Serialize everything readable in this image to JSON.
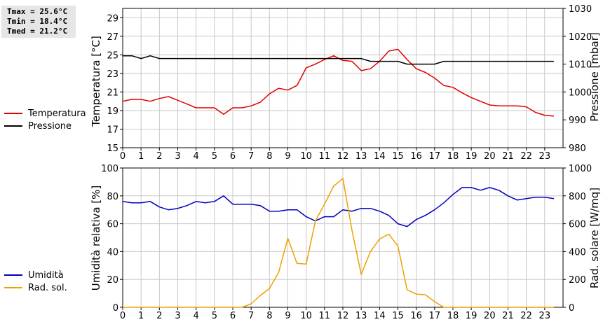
{
  "stats": {
    "tmax": "Tmax = 25.6°C",
    "tmin": "Tmin = 18.4°C",
    "tmed": "Tmed = 21.2°C"
  },
  "colors": {
    "temperature": "#e00000",
    "pressure": "#000000",
    "humidity": "#0000c0",
    "radiation": "#f0a000",
    "grid": "#c8c8c8"
  },
  "chart_data": [
    {
      "type": "line",
      "ylabel": "Temperatura [°C]",
      "y2label": "Pressione [mbar]",
      "xlim": [
        0,
        24
      ],
      "xticks": [
        0,
        1,
        2,
        3,
        4,
        5,
        6,
        7,
        8,
        9,
        10,
        11,
        12,
        13,
        14,
        15,
        16,
        17,
        18,
        19,
        20,
        21,
        22,
        23
      ],
      "ylim": [
        15,
        30
      ],
      "yticks": [
        15,
        17,
        19,
        21,
        23,
        25,
        27,
        29
      ],
      "y2lim": [
        980,
        1030
      ],
      "y2ticks": [
        980,
        990,
        1000,
        1010,
        1020,
        1030
      ],
      "grid": true,
      "legend_position": "left",
      "series": [
        {
          "name": "Temperatura",
          "axis": "left",
          "x": [
            0,
            0.5,
            1,
            1.5,
            2,
            2.5,
            3,
            3.5,
            4,
            4.5,
            5,
            5.5,
            6,
            6.5,
            7,
            7.5,
            8,
            8.5,
            9,
            9.5,
            10,
            10.5,
            11,
            11.5,
            12,
            12.5,
            13,
            13.5,
            14,
            14.5,
            15,
            15.5,
            16,
            16.5,
            17,
            17.5,
            18,
            18.5,
            19,
            19.5,
            20,
            20.5,
            21,
            21.5,
            22,
            22.5,
            23,
            23.5
          ],
          "values": [
            20.0,
            20.2,
            20.2,
            20.0,
            20.3,
            20.5,
            20.1,
            19.7,
            19.3,
            19.3,
            19.3,
            18.6,
            19.3,
            19.3,
            19.5,
            19.9,
            20.8,
            21.4,
            21.2,
            21.7,
            23.6,
            24.0,
            24.5,
            24.9,
            24.4,
            24.3,
            23.3,
            23.5,
            24.3,
            25.4,
            25.6,
            24.5,
            23.5,
            23.1,
            22.5,
            21.7,
            21.5,
            20.9,
            20.4,
            20.0,
            19.6,
            19.5,
            19.5,
            19.5,
            19.4,
            18.8,
            18.5,
            18.4
          ]
        },
        {
          "name": "Pressione",
          "axis": "right",
          "x": [
            0,
            0.5,
            1,
            1.5,
            2,
            2.5,
            3,
            3.5,
            4,
            4.5,
            5,
            5.5,
            6,
            6.5,
            7,
            7.5,
            8,
            8.5,
            9,
            9.5,
            10,
            10.5,
            11,
            11.5,
            12,
            12.5,
            13,
            13.5,
            14,
            14.5,
            15,
            15.5,
            16,
            16.5,
            17,
            17.5,
            18,
            18.5,
            19,
            19.5,
            20,
            20.5,
            21,
            21.5,
            22,
            22.5,
            23,
            23.5
          ],
          "values": [
            1013,
            1013,
            1012,
            1013,
            1012,
            1012,
            1012,
            1012,
            1012,
            1012,
            1012,
            1012,
            1012,
            1012,
            1012,
            1012,
            1012,
            1012,
            1012,
            1012,
            1012,
            1012,
            1012,
            1012,
            1012,
            1012,
            1012,
            1011,
            1011,
            1011,
            1011,
            1010,
            1010,
            1010,
            1010,
            1011,
            1011,
            1011,
            1011,
            1011,
            1011,
            1011,
            1011,
            1011,
            1011,
            1011,
            1011,
            1011
          ]
        }
      ]
    },
    {
      "type": "line",
      "ylabel": "Umidità relativa [%]",
      "y2label": "Rad. solare [W/mq]",
      "xlim": [
        0,
        24
      ],
      "xticks": [
        0,
        1,
        2,
        3,
        4,
        5,
        6,
        7,
        8,
        9,
        10,
        11,
        12,
        13,
        14,
        15,
        16,
        17,
        18,
        19,
        20,
        21,
        22,
        23
      ],
      "ylim": [
        0,
        100
      ],
      "yticks": [
        0,
        20,
        40,
        60,
        80,
        100
      ],
      "y2lim": [
        0,
        1000
      ],
      "y2ticks": [
        0,
        200,
        400,
        600,
        800,
        1000
      ],
      "grid": true,
      "legend_position": "left",
      "series": [
        {
          "name": "Umidità",
          "axis": "left",
          "x": [
            0,
            0.5,
            1,
            1.5,
            2,
            2.5,
            3,
            3.5,
            4,
            4.5,
            5,
            5.5,
            6,
            6.5,
            7,
            7.5,
            8,
            8.5,
            9,
            9.5,
            10,
            10.5,
            11,
            11.5,
            12,
            12.5,
            13,
            13.5,
            14,
            14.5,
            15,
            15.5,
            16,
            16.5,
            17,
            17.5,
            18,
            18.5,
            19,
            19.5,
            20,
            20.5,
            21,
            21.5,
            22,
            22.5,
            23,
            23.5
          ],
          "values": [
            76,
            75,
            75,
            76,
            72,
            70,
            71,
            73,
            76,
            75,
            76,
            80,
            74,
            74,
            74,
            73,
            69,
            69,
            70,
            70,
            65,
            62,
            65,
            65,
            70,
            69,
            71,
            71,
            69,
            66,
            60,
            58,
            63,
            66,
            70,
            75,
            81,
            86,
            86,
            84,
            86,
            84,
            80,
            77,
            78,
            79,
            79,
            78
          ]
        },
        {
          "name": "Rad. sol.",
          "axis": "right",
          "x": [
            0,
            0.5,
            1,
            1.5,
            2,
            2.5,
            3,
            3.5,
            4,
            4.5,
            5,
            5.5,
            6,
            6.5,
            7,
            7.5,
            8,
            8.5,
            9,
            9.5,
            10,
            10.5,
            11,
            11.5,
            12,
            12.5,
            13,
            13.5,
            14,
            14.5,
            15,
            15.5,
            16,
            16.5,
            17,
            17.5,
            18,
            18.5,
            19,
            19.5,
            20,
            20.5,
            21,
            21.5,
            22,
            22.5,
            23,
            23.5
          ],
          "values": [
            0,
            0,
            0,
            0,
            0,
            0,
            0,
            0,
            0,
            0,
            0,
            0,
            0,
            0,
            25,
            85,
            135,
            250,
            495,
            315,
            310,
            620,
            740,
            870,
            925,
            550,
            235,
            400,
            490,
            525,
            440,
            125,
            95,
            90,
            40,
            0,
            0,
            0,
            0,
            0,
            0,
            0,
            0,
            0,
            0,
            0,
            0,
            0
          ]
        }
      ]
    }
  ]
}
